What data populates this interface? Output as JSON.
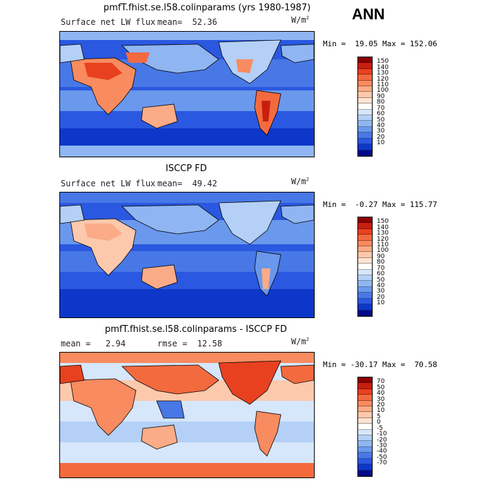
{
  "season": "ANN",
  "panels": [
    {
      "title": "pmfT.fhist.se.l58.colinparams (yrs 1980-1987)",
      "left_label": "Surface net LW flux",
      "mid_label": "mean=  52.36",
      "units": "W/m",
      "units_exp": "2",
      "minmax": "Min =  19.05 Max = 152.06",
      "colorbar": {
        "labels": [
          "150",
          "140",
          "130",
          "120",
          "110",
          "100",
          "90",
          "80",
          "70",
          "60",
          "50",
          "40",
          "30",
          "20",
          "10"
        ],
        "colors": [
          "#8b0000",
          "#c81e0f",
          "#e8411f",
          "#f36a3f",
          "#f88b5f",
          "#fbab87",
          "#fcc9ad",
          "#fde3d1",
          "#ffffff",
          "#d6e6fb",
          "#b4d0f7",
          "#8fb6f2",
          "#6a98ec",
          "#4878e6",
          "#2a58e0",
          "#0d37c8",
          "#000a8a"
        ]
      }
    },
    {
      "title": "ISCCP FD",
      "left_label": "Surface net LW flux",
      "mid_label": "mean=  49.42",
      "units": "W/m",
      "units_exp": "2",
      "minmax": "Min =  -0.27 Max = 115.77",
      "colorbar": {
        "labels": [
          "150",
          "140",
          "130",
          "120",
          "110",
          "100",
          "90",
          "80",
          "70",
          "60",
          "50",
          "40",
          "30",
          "20",
          "10"
        ],
        "colors": [
          "#8b0000",
          "#c81e0f",
          "#e8411f",
          "#f36a3f",
          "#f88b5f",
          "#fbab87",
          "#fcc9ad",
          "#fde3d1",
          "#ffffff",
          "#d6e6fb",
          "#b4d0f7",
          "#8fb6f2",
          "#6a98ec",
          "#4878e6",
          "#2a58e0",
          "#0d37c8",
          "#000a8a"
        ]
      }
    },
    {
      "title": "pmfT.fhist.se.l58.colinparams - ISCCP FD",
      "left_label": "mean =   2.94",
      "mid_label": "rmse =  12.58",
      "units": "W/m",
      "units_exp": "2",
      "minmax": "Min = -30.17 Max =  70.58",
      "colorbar": {
        "labels": [
          "70",
          "50",
          "40",
          "30",
          "20",
          "10",
          "5",
          "0",
          "-5",
          "-10",
          "-20",
          "-30",
          "-40",
          "-50",
          "-70"
        ],
        "colors": [
          "#8b0000",
          "#c81e0f",
          "#e8411f",
          "#f36a3f",
          "#f88b5f",
          "#fbab87",
          "#fcc9ad",
          "#fde3d1",
          "#ffffff",
          "#d6e6fb",
          "#b4d0f7",
          "#8fb6f2",
          "#6a98ec",
          "#4878e6",
          "#2a58e0",
          "#0d37c8",
          "#000a8a"
        ]
      }
    }
  ]
}
